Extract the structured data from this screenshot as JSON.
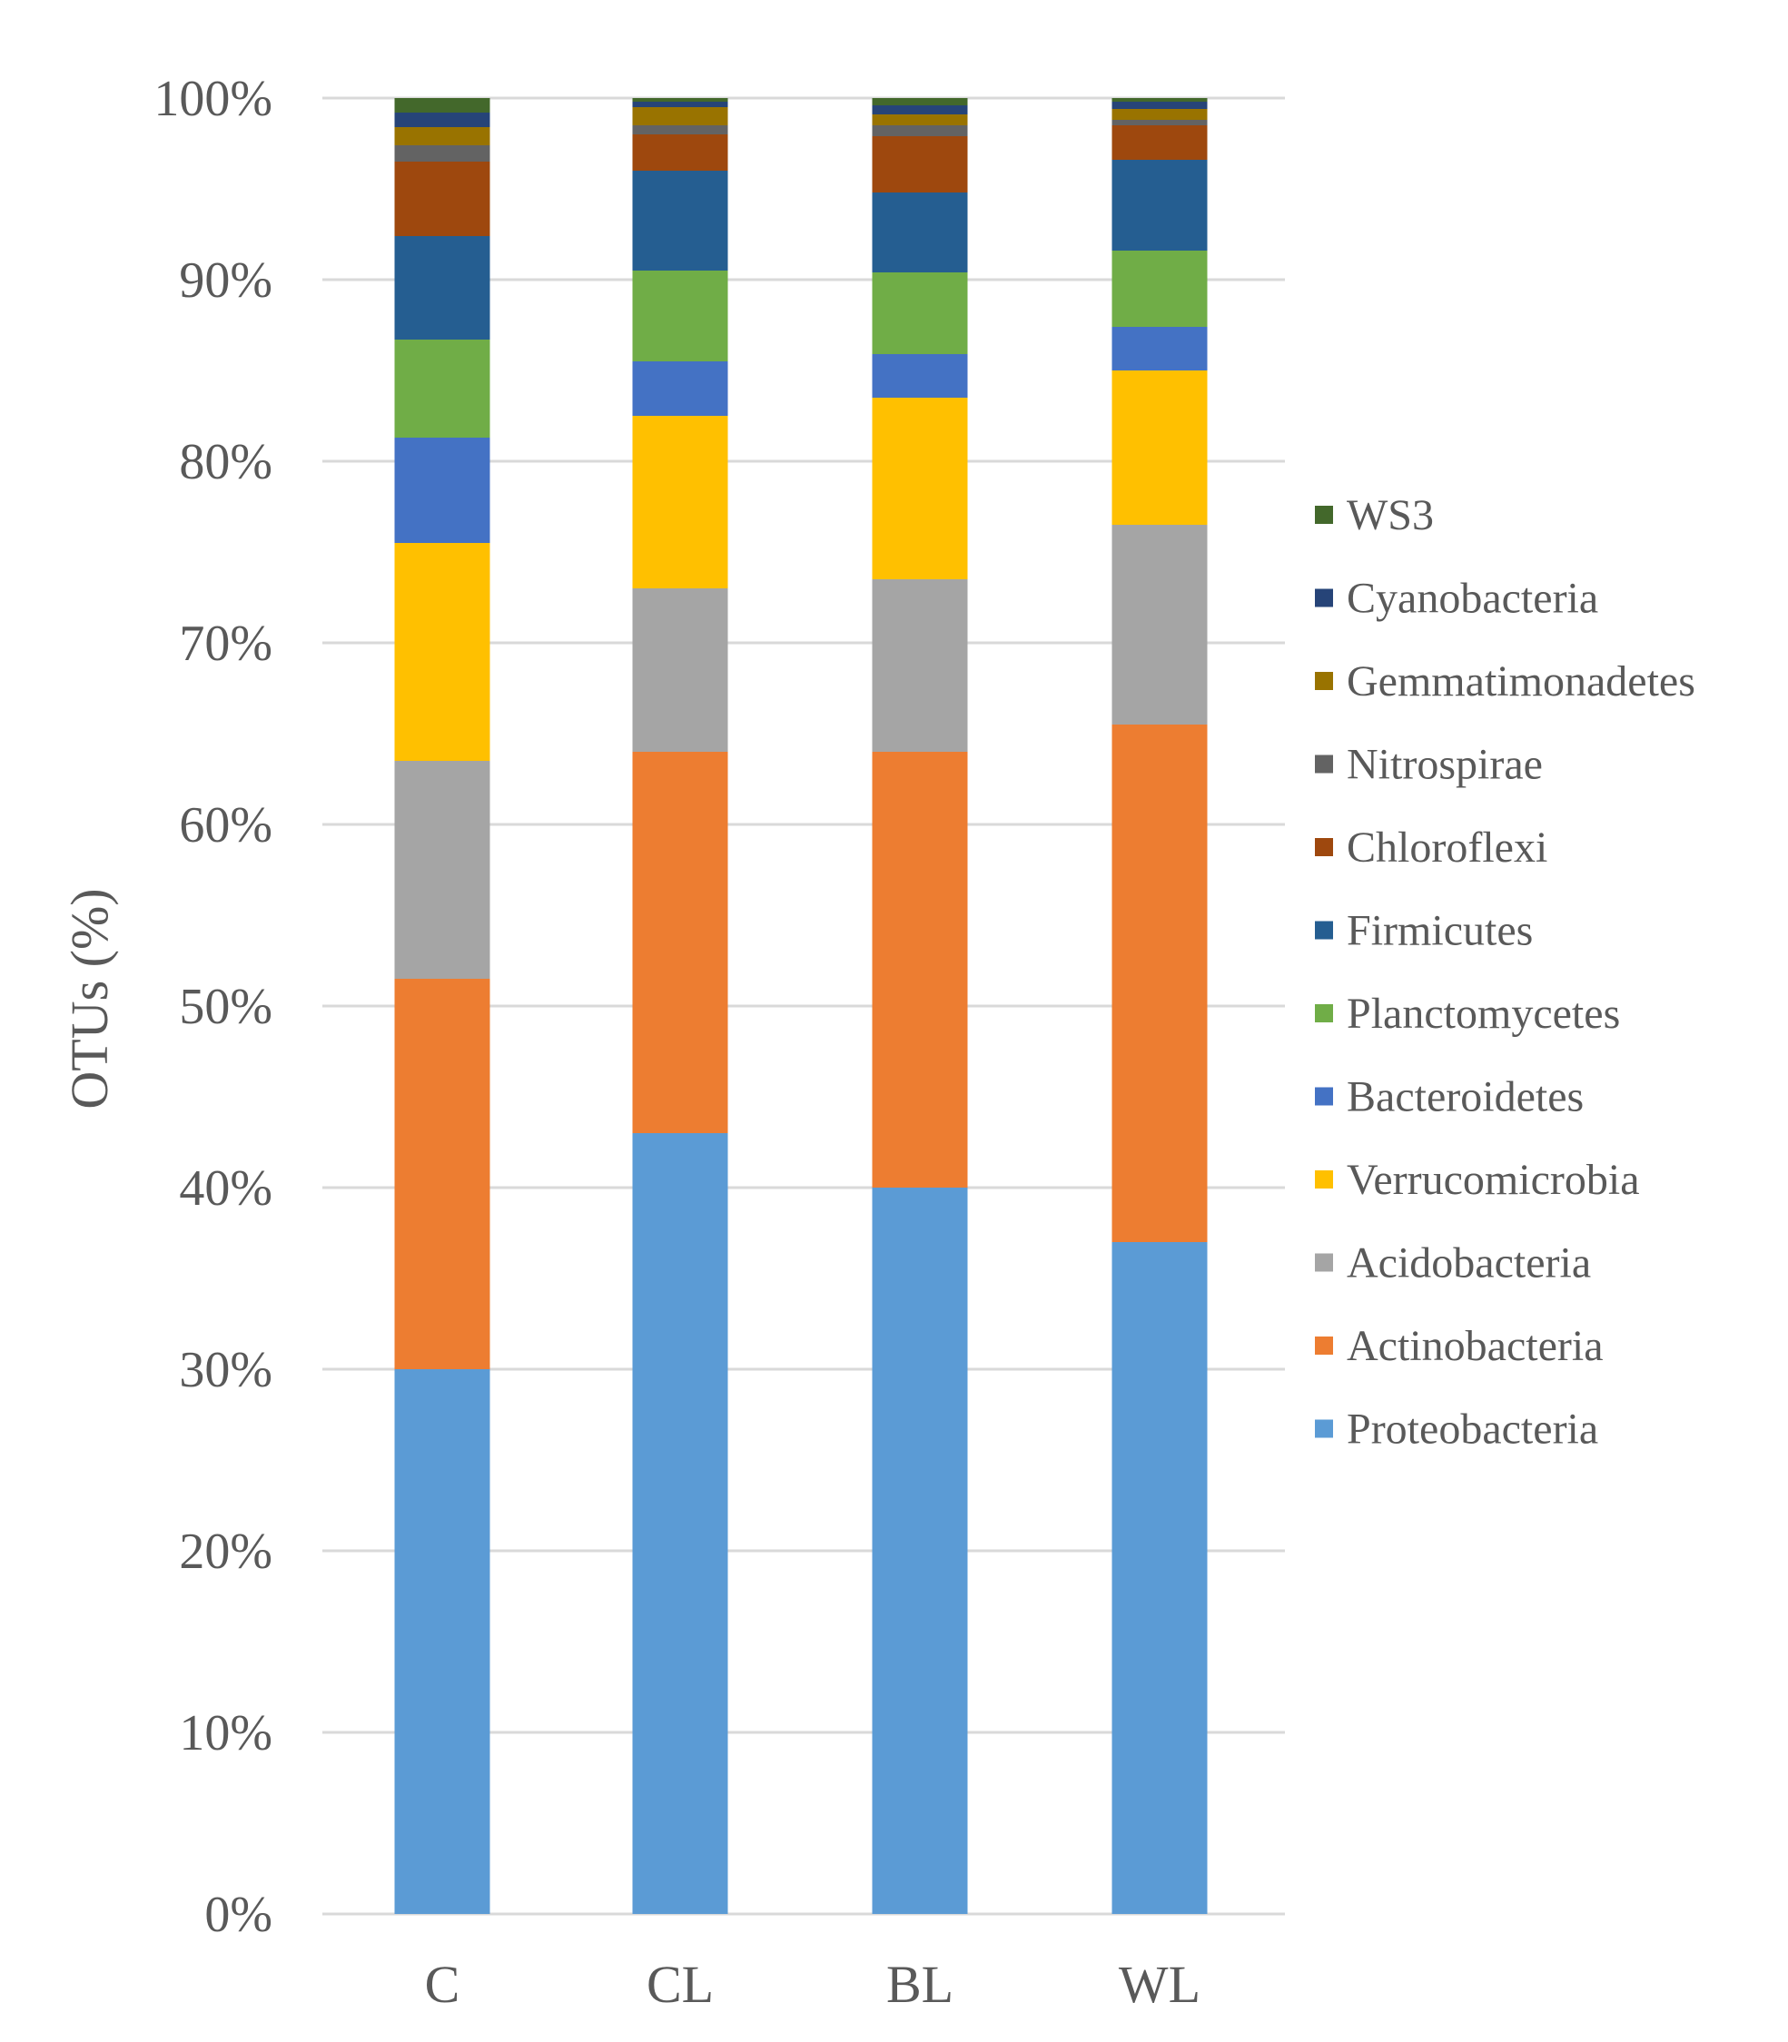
{
  "chart_data": {
    "type": "stacked-bar-100",
    "title": "",
    "xlabel": "",
    "ylabel": "OTUs (%)",
    "ylim": [
      0,
      100
    ],
    "y_ticks": [
      "0%",
      "10%",
      "20%",
      "30%",
      "40%",
      "50%",
      "60%",
      "70%",
      "80%",
      "90%",
      "100%"
    ],
    "categories": [
      "C",
      "CL",
      "BL",
      "WL"
    ],
    "legend_position": "right",
    "series": [
      {
        "name": "Proteobacteria",
        "color": "#5b9bd5",
        "values": [
          30.0,
          43.0,
          40.0,
          37.0
        ]
      },
      {
        "name": "Actinobacteria",
        "color": "#ed7d31",
        "values": [
          21.5,
          21.0,
          24.0,
          28.5
        ]
      },
      {
        "name": "Acidobacteria",
        "color": "#a5a5a5",
        "values": [
          12.0,
          9.0,
          9.5,
          11.0
        ]
      },
      {
        "name": "Verrucomicrobia",
        "color": "#ffc000",
        "values": [
          12.0,
          9.5,
          10.0,
          8.5
        ]
      },
      {
        "name": "Bacteroidetes",
        "color": "#4472c4",
        "values": [
          5.8,
          3.0,
          2.4,
          2.4
        ]
      },
      {
        "name": "Planctomycetes",
        "color": "#70ad47",
        "values": [
          5.4,
          5.0,
          4.5,
          4.2
        ]
      },
      {
        "name": "Firmicutes",
        "color": "#255e91",
        "values": [
          5.7,
          5.5,
          4.4,
          5.0
        ]
      },
      {
        "name": "Chloroflexi",
        "color": "#9e480e",
        "values": [
          4.1,
          2.0,
          3.1,
          1.9
        ]
      },
      {
        "name": "Nitrospirae",
        "color": "#636363",
        "values": [
          0.9,
          0.5,
          0.6,
          0.3
        ]
      },
      {
        "name": "Gemmatimonadetes",
        "color": "#997300",
        "values": [
          1.0,
          1.0,
          0.6,
          0.6
        ]
      },
      {
        "name": "Cyanobacteria",
        "color": "#264478",
        "values": [
          0.8,
          0.3,
          0.5,
          0.4
        ]
      },
      {
        "name": "WS3",
        "color": "#43682b",
        "values": [
          0.8,
          0.2,
          0.4,
          0.2
        ]
      }
    ],
    "legend_order": [
      "WS3",
      "Cyanobacteria",
      "Gemmatimonadetes",
      "Nitrospirae",
      "Chloroflexi",
      "Firmicutes",
      "Planctomycetes",
      "Bacteroidetes",
      "Verrucomicrobia",
      "Acidobacteria",
      "Actinobacteria",
      "Proteobacteria"
    ]
  }
}
